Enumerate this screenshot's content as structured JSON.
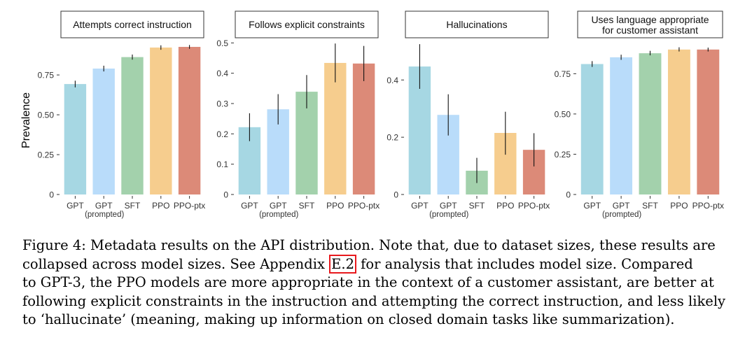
{
  "chart_data": {
    "type": "bar",
    "ylabel": "Prevalence",
    "categories": [
      "GPT",
      "GPT",
      "SFT",
      "PPO",
      "PPO-ptx"
    ],
    "category_sublabels": [
      "",
      "(prompted)",
      "",
      "",
      ""
    ],
    "colors": [
      "#a6d7e3",
      "#b9dcfa",
      "#a3d1ac",
      "#f6cd8e",
      "#dc8a78"
    ],
    "panels": [
      {
        "title": "Attempts correct instruction",
        "ylim": [
          0,
          0.97
        ],
        "ticks": [
          0,
          0.25,
          0.5,
          0.75
        ],
        "tick_labels": [
          "0",
          "0.25",
          "0.50",
          "0.75"
        ],
        "values": [
          0.693,
          0.79,
          0.862,
          0.922,
          0.926
        ],
        "err_low": [
          0.672,
          0.772,
          0.846,
          0.908,
          0.914
        ],
        "err_high": [
          0.714,
          0.808,
          0.878,
          0.936,
          0.938
        ]
      },
      {
        "title": "Follows explicit constraints",
        "ylim": [
          0,
          0.51
        ],
        "ticks": [
          0,
          0.1,
          0.2,
          0.3,
          0.4,
          0.5
        ],
        "tick_labels": [
          "0",
          "0.1",
          "0.2",
          "0.3",
          "0.4",
          "0.5"
        ],
        "values": [
          0.222,
          0.281,
          0.339,
          0.434,
          0.432
        ],
        "err_low": [
          0.176,
          0.231,
          0.284,
          0.37,
          0.374
        ],
        "err_high": [
          0.268,
          0.331,
          0.394,
          0.498,
          0.49
        ]
      },
      {
        "title": "Hallucinations",
        "ylim": [
          0,
          0.54
        ],
        "ticks": [
          0,
          0.2,
          0.4
        ],
        "tick_labels": [
          "0",
          "0.2",
          "0.4"
        ],
        "values": [
          0.447,
          0.278,
          0.083,
          0.215,
          0.156
        ],
        "err_low": [
          0.369,
          0.206,
          0.04,
          0.139,
          0.098
        ],
        "err_high": [
          0.525,
          0.35,
          0.128,
          0.289,
          0.214
        ]
      },
      {
        "title": "Uses language appropriate",
        "title_line2": "for customer assistant",
        "ylim": [
          0,
          0.96
        ],
        "ticks": [
          0,
          0.25,
          0.5,
          0.75
        ],
        "tick_labels": [
          "0",
          "0.25",
          "0.50",
          "0.75"
        ],
        "values": [
          0.81,
          0.852,
          0.877,
          0.9,
          0.9
        ],
        "err_low": [
          0.792,
          0.836,
          0.864,
          0.888,
          0.888
        ],
        "err_high": [
          0.828,
          0.868,
          0.892,
          0.914,
          0.912
        ]
      }
    ]
  },
  "caption": {
    "lines": [
      "Figure 4: Metadata results on the API distribution. Note that, due to dataset sizes, these results are",
      "collapsed across model sizes. See Appendix ",
      " for analysis that includes model size. Compared",
      "to GPT-3, the PPO models are more appropriate in the context of a customer assistant, are better at",
      "following explicit constraints in the instruction and attempting the correct instruction, and less likely",
      "to ‘hallucinate’ (meaning, making up information on closed domain tasks like summarization)."
    ],
    "link_text": "E.2"
  }
}
